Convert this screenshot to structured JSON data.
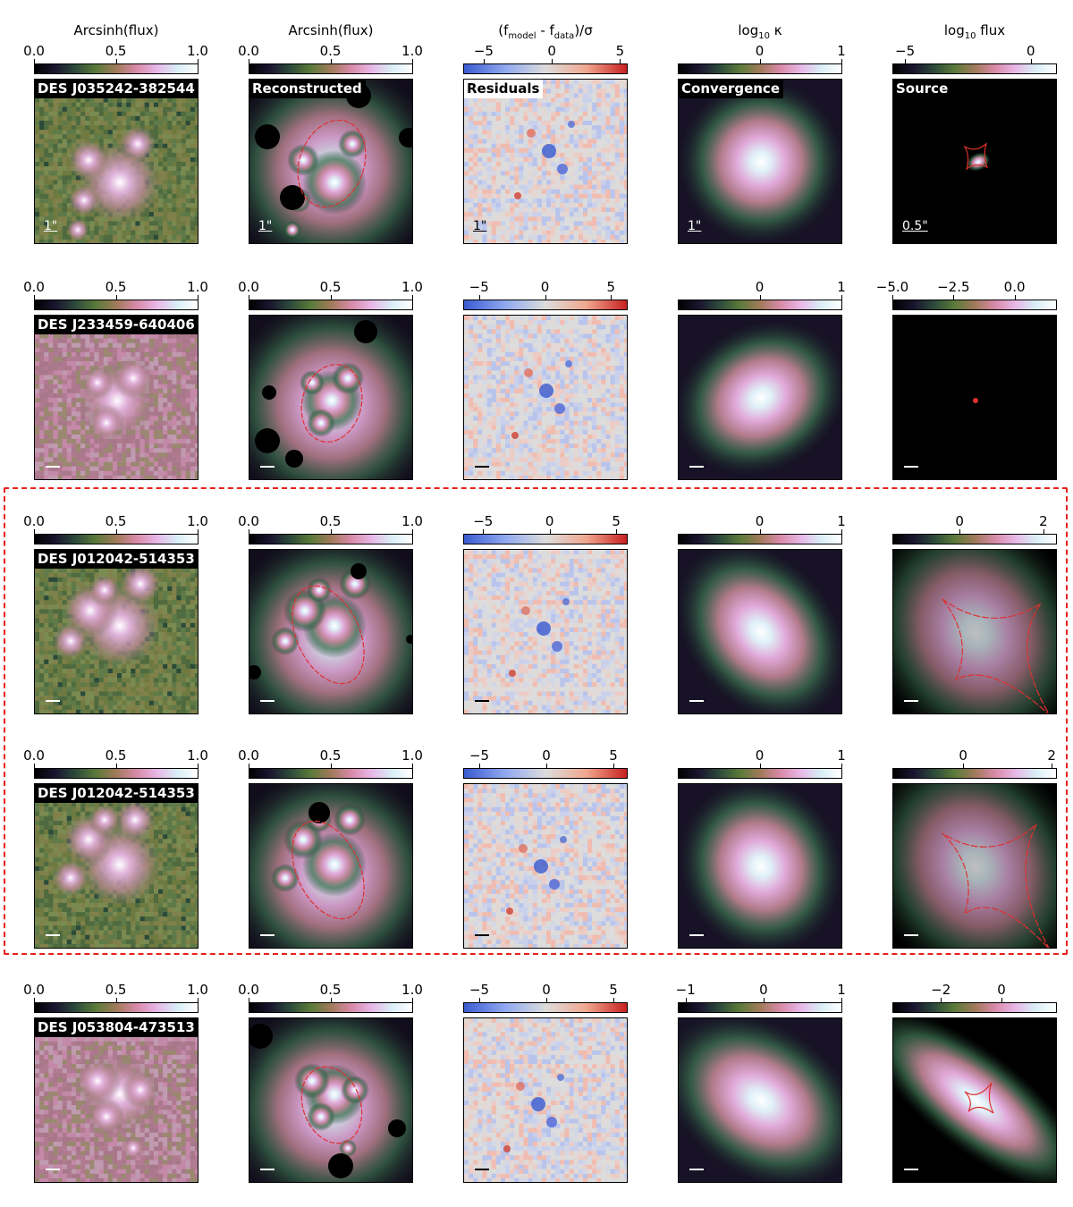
{
  "figure": {
    "column_titles": [
      "Arcsinh(flux)",
      "Arcsinh(flux)",
      "(f_model - f_data)/σ",
      "log₁₀ κ",
      "log₁₀ flux"
    ],
    "colormaps": {
      "cubehelix": [
        "#000000",
        "#1a1530",
        "#2c4a3a",
        "#5a7a3a",
        "#a07a5a",
        "#d88aa8",
        "#e7b7e7",
        "#d9eef6",
        "#ffffff"
      ],
      "residual": [
        "#3a5ad0",
        "#8fa8f0",
        "#dcdcdc",
        "#f0a890",
        "#c82020"
      ]
    },
    "panel_labels": [
      "Reconstructed",
      "Residuals",
      "Convergence",
      "Source"
    ],
    "scale_labels": {
      "image": "1\"",
      "source": "0.5\""
    },
    "highlight_color": "#e8201c",
    "rows": [
      {
        "name": "DES J035242-382544",
        "colorbars": [
          {
            "ticks": [
              {
                "v": 0.0,
                "t": "0.0"
              },
              {
                "v": 0.5,
                "t": "0.5"
              },
              {
                "v": 1.0,
                "t": "1.0"
              }
            ],
            "range": [
              0,
              1
            ]
          },
          {
            "ticks": [
              {
                "v": 0.0,
                "t": "0.0"
              },
              {
                "v": 0.5,
                "t": "0.5"
              },
              {
                "v": 1.0,
                "t": "1.0"
              }
            ],
            "range": [
              0,
              1
            ]
          },
          {
            "ticks": [
              {
                "v": -5,
                "t": "−5"
              },
              {
                "v": 0,
                "t": "0"
              },
              {
                "v": 5,
                "t": "5"
              }
            ],
            "range": [
              -6.5,
              5.5
            ]
          },
          {
            "ticks": [
              {
                "v": 0,
                "t": "0"
              },
              {
                "v": 1,
                "t": "1"
              }
            ],
            "range": [
              -1.0,
              1.0
            ]
          },
          {
            "ticks": [
              {
                "v": -5,
                "t": "−5"
              },
              {
                "v": 0,
                "t": "0"
              }
            ],
            "range": [
              -5.5,
              1.0
            ]
          }
        ]
      },
      {
        "name": "DES J233459-640406",
        "colorbars": [
          {
            "ticks": [
              {
                "v": 0.0,
                "t": "0.0"
              },
              {
                "v": 0.5,
                "t": "0.5"
              },
              {
                "v": 1.0,
                "t": "1.0"
              }
            ],
            "range": [
              0,
              1
            ]
          },
          {
            "ticks": [
              {
                "v": 0.0,
                "t": "0.0"
              },
              {
                "v": 0.5,
                "t": "0.5"
              },
              {
                "v": 1.0,
                "t": "1.0"
              }
            ],
            "range": [
              0,
              1
            ]
          },
          {
            "ticks": [
              {
                "v": -5,
                "t": "−5"
              },
              {
                "v": 0,
                "t": "0"
              },
              {
                "v": 5,
                "t": "5"
              }
            ],
            "range": [
              -6.2,
              6.2
            ]
          },
          {
            "ticks": [
              {
                "v": 0,
                "t": "0"
              },
              {
                "v": 1,
                "t": "1"
              }
            ],
            "range": [
              -1.0,
              1.0
            ]
          },
          {
            "ticks": [
              {
                "v": -5.0,
                "t": "−5.0"
              },
              {
                "v": -2.5,
                "t": "−2.5"
              },
              {
                "v": 0.0,
                "t": "0.0"
              }
            ],
            "range": [
              -5.0,
              1.7
            ]
          }
        ]
      },
      {
        "name": "DES J012042-514353",
        "colorbars": [
          {
            "ticks": [
              {
                "v": 0.0,
                "t": "0.0"
              },
              {
                "v": 0.5,
                "t": "0.5"
              },
              {
                "v": 1.0,
                "t": "1.0"
              }
            ],
            "range": [
              0,
              1
            ]
          },
          {
            "ticks": [
              {
                "v": 0.0,
                "t": "0.0"
              },
              {
                "v": 0.5,
                "t": "0.5"
              },
              {
                "v": 1.0,
                "t": "1.0"
              }
            ],
            "range": [
              0,
              1
            ]
          },
          {
            "ticks": [
              {
                "v": -5,
                "t": "−5"
              },
              {
                "v": 0,
                "t": "0"
              },
              {
                "v": 5,
                "t": "5"
              }
            ],
            "range": [
              -6.5,
              5.8
            ]
          },
          {
            "ticks": [
              {
                "v": 0,
                "t": "0"
              },
              {
                "v": 1,
                "t": "1"
              }
            ],
            "range": [
              -1.0,
              1.0
            ]
          },
          {
            "ticks": [
              {
                "v": 0,
                "t": "0"
              },
              {
                "v": 2,
                "t": "2"
              }
            ],
            "range": [
              -1.6,
              2.3
            ]
          }
        ]
      },
      {
        "name": "DES J012042-514353",
        "colorbars": [
          {
            "ticks": [
              {
                "v": 0.0,
                "t": "0.0"
              },
              {
                "v": 0.5,
                "t": "0.5"
              },
              {
                "v": 1.0,
                "t": "1.0"
              }
            ],
            "range": [
              0,
              1
            ]
          },
          {
            "ticks": [
              {
                "v": 0.0,
                "t": "0.0"
              },
              {
                "v": 0.5,
                "t": "0.5"
              },
              {
                "v": 1.0,
                "t": "1.0"
              }
            ],
            "range": [
              0,
              1
            ]
          },
          {
            "ticks": [
              {
                "v": -5,
                "t": "−5"
              },
              {
                "v": 0,
                "t": "0"
              },
              {
                "v": 5,
                "t": "5"
              }
            ],
            "range": [
              -6.2,
              6.0
            ]
          },
          {
            "ticks": [
              {
                "v": 0,
                "t": "0"
              },
              {
                "v": 1,
                "t": "1"
              }
            ],
            "range": [
              -1.0,
              1.0
            ]
          },
          {
            "ticks": [
              {
                "v": 0,
                "t": "0"
              },
              {
                "v": 2,
                "t": "2"
              }
            ],
            "range": [
              -1.6,
              2.1
            ]
          }
        ]
      },
      {
        "name": "DES J053804-473513",
        "colorbars": [
          {
            "ticks": [
              {
                "v": 0.0,
                "t": "0.0"
              },
              {
                "v": 0.5,
                "t": "0.5"
              },
              {
                "v": 1.0,
                "t": "1.0"
              }
            ],
            "range": [
              0,
              1
            ]
          },
          {
            "ticks": [
              {
                "v": 0.0,
                "t": "0.0"
              },
              {
                "v": 0.5,
                "t": "0.5"
              },
              {
                "v": 1.0,
                "t": "1.0"
              }
            ],
            "range": [
              0,
              1
            ]
          },
          {
            "ticks": [
              {
                "v": -5,
                "t": "−5"
              },
              {
                "v": 0,
                "t": "0"
              },
              {
                "v": 5,
                "t": "5"
              }
            ],
            "range": [
              -6.2,
              6.0
            ]
          },
          {
            "ticks": [
              {
                "v": -1,
                "t": "−1"
              },
              {
                "v": 0,
                "t": "0"
              },
              {
                "v": 1,
                "t": "1"
              }
            ],
            "range": [
              -1.1,
              1.0
            ]
          },
          {
            "ticks": [
              {
                "v": -2,
                "t": "−2"
              },
              {
                "v": 0,
                "t": "0"
              }
            ],
            "range": [
              -3.6,
              1.8
            ]
          }
        ]
      }
    ]
  }
}
